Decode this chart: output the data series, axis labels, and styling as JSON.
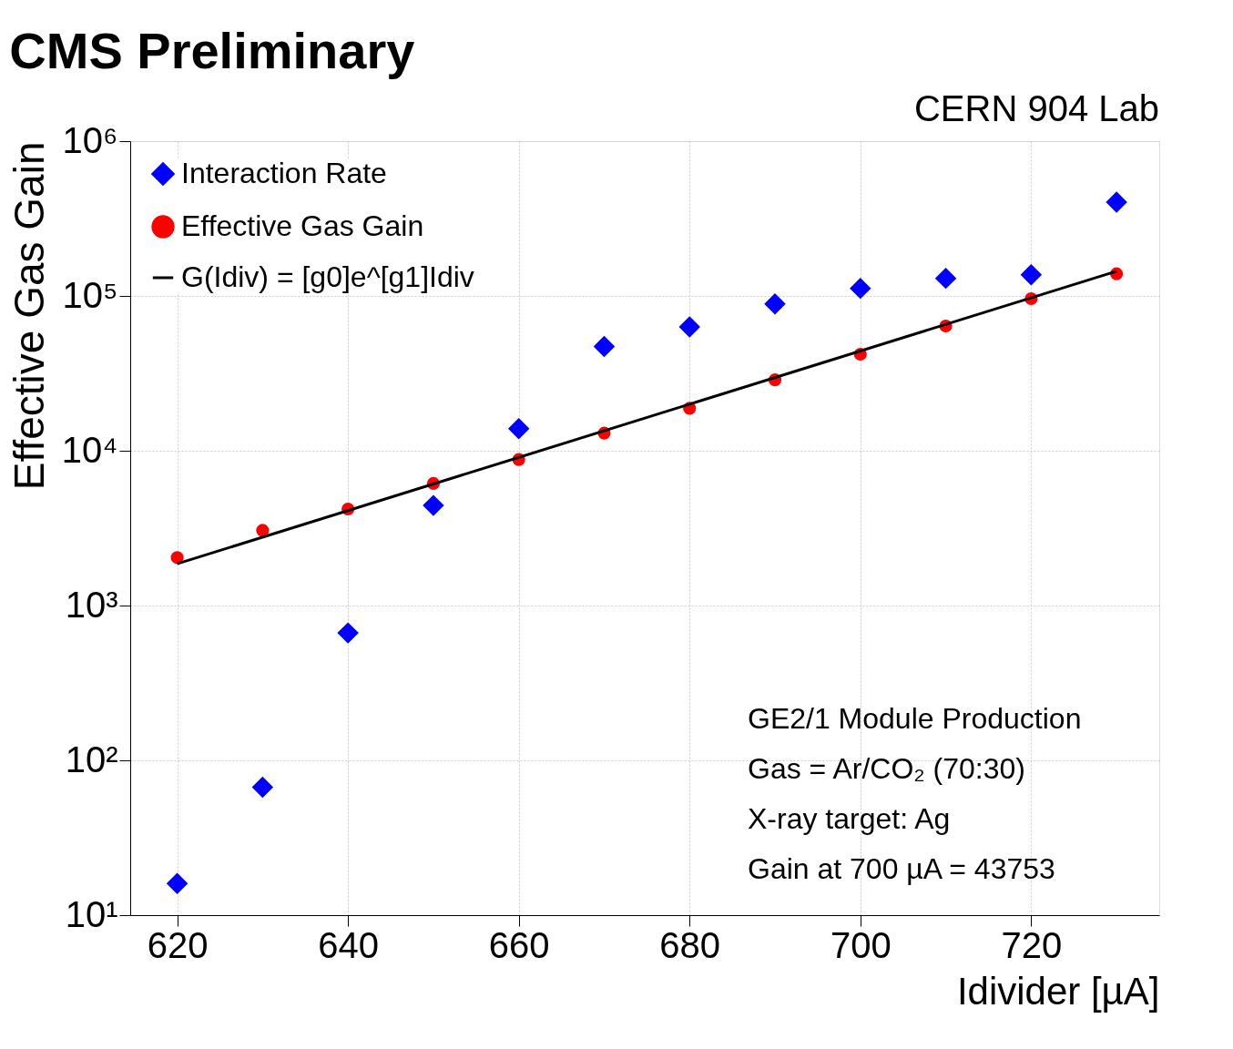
{
  "chart_data": {
    "type": "scatter",
    "title": "CMS Preliminary",
    "xlabel": "Idivider [µA]",
    "ylabel": "Effective Gas Gain",
    "x": [
      620,
      630,
      640,
      650,
      660,
      670,
      680,
      690,
      700,
      710,
      720,
      730
    ],
    "series": [
      {
        "name": "Interaction Rate",
        "color": "#0000ff",
        "marker": "diamond",
        "values": [
          16,
          67,
          665,
          4430,
          13900,
          47200,
          63100,
          88900,
          112000,
          130000,
          137000,
          404000
        ]
      },
      {
        "name": "Effective Gas Gain",
        "color": "#ff0000",
        "marker": "circle",
        "values": [
          2040,
          3060,
          4200,
          6150,
          8770,
          13000,
          18800,
          28700,
          42000,
          64000,
          96000,
          139000
        ]
      },
      {
        "name": "G(Idiv) = [g0]e^[g1]Idiv",
        "type": "line",
        "color": "#000000",
        "marker": "none",
        "x": [
          620,
          730
        ],
        "values": [
          1860,
          144500
        ]
      }
    ],
    "xlim": [
      614.5,
      735
    ],
    "xticks": [
      620,
      640,
      660,
      680,
      700,
      720
    ],
    "ylim": [
      10,
      1000000
    ],
    "yticks": [
      {
        "value": 10,
        "label": "10¹"
      },
      {
        "value": 100,
        "label": "10²"
      },
      {
        "value": 1000,
        "label": "10³"
      },
      {
        "value": 10000,
        "label": "10⁴"
      },
      {
        "value": 100000,
        "label": "10⁵"
      },
      {
        "value": 1000000,
        "label": "10⁶"
      }
    ],
    "log": "y",
    "grid": true,
    "legend": "top left",
    "annotations": [
      "CERN 904 Lab",
      "GE2/1 Module Production",
      "Gas = Ar/CO₂ (70:30)",
      "X-ray target: Ag",
      "Gain at 700 µA = 43753"
    ]
  }
}
